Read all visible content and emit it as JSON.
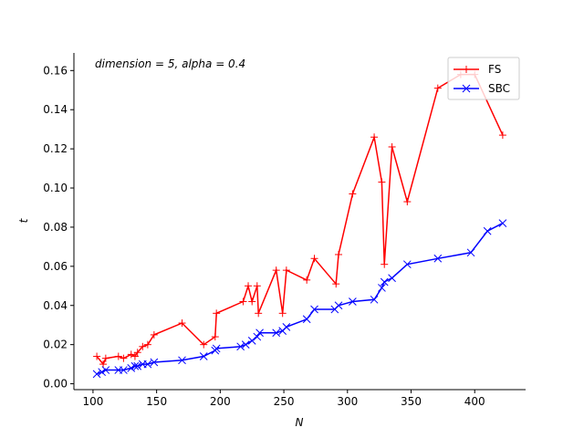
{
  "chart_data": {
    "type": "line",
    "annotation": "dimension = 5, alpha = 0.4",
    "xlabel": "N",
    "ylabel": "t",
    "xlim": [
      85,
      440
    ],
    "ylim": [
      -0.003,
      0.169
    ],
    "xticks": [
      100,
      150,
      200,
      250,
      300,
      350,
      400
    ],
    "yticks": [
      0.0,
      0.02,
      0.04,
      0.06,
      0.08,
      0.1,
      0.12,
      0.14,
      0.16
    ],
    "grid": false,
    "legend_position": "top-right",
    "series": [
      {
        "name": "FS",
        "color": "#ff0000",
        "marker": "plus",
        "points": [
          [
            103,
            0.014
          ],
          [
            108,
            0.01
          ],
          [
            110,
            0.013
          ],
          [
            120,
            0.014
          ],
          [
            124,
            0.013
          ],
          [
            130,
            0.015
          ],
          [
            133,
            0.014
          ],
          [
            135,
            0.016
          ],
          [
            139,
            0.019
          ],
          [
            143,
            0.02
          ],
          [
            148,
            0.025
          ],
          [
            170,
            0.031
          ],
          [
            187,
            0.02
          ],
          [
            196,
            0.024
          ],
          [
            197,
            0.036
          ],
          [
            218,
            0.042
          ],
          [
            222,
            0.05
          ],
          [
            225,
            0.042
          ],
          [
            229,
            0.05
          ],
          [
            230,
            0.036
          ],
          [
            244,
            0.058
          ],
          [
            249,
            0.036
          ],
          [
            252,
            0.058
          ],
          [
            268,
            0.053
          ],
          [
            274,
            0.064
          ],
          [
            291,
            0.051
          ],
          [
            293,
            0.066
          ],
          [
            304,
            0.097
          ],
          [
            321,
            0.126
          ],
          [
            327,
            0.103
          ],
          [
            329,
            0.061
          ],
          [
            335,
            0.121
          ],
          [
            347,
            0.093
          ],
          [
            371,
            0.151
          ],
          [
            389,
            0.158
          ],
          [
            400,
            0.158
          ],
          [
            422,
            0.127
          ]
        ]
      },
      {
        "name": "SBC",
        "color": "#0000ff",
        "marker": "x",
        "points": [
          [
            103,
            0.005
          ],
          [
            107,
            0.006
          ],
          [
            110,
            0.007
          ],
          [
            120,
            0.007
          ],
          [
            124,
            0.007
          ],
          [
            130,
            0.008
          ],
          [
            133,
            0.009
          ],
          [
            135,
            0.009
          ],
          [
            139,
            0.01
          ],
          [
            143,
            0.01
          ],
          [
            148,
            0.011
          ],
          [
            170,
            0.012
          ],
          [
            187,
            0.014
          ],
          [
            196,
            0.017
          ],
          [
            197,
            0.018
          ],
          [
            216,
            0.019
          ],
          [
            220,
            0.02
          ],
          [
            225,
            0.022
          ],
          [
            229,
            0.024
          ],
          [
            231,
            0.026
          ],
          [
            244,
            0.026
          ],
          [
            249,
            0.027
          ],
          [
            252,
            0.029
          ],
          [
            268,
            0.033
          ],
          [
            274,
            0.038
          ],
          [
            290,
            0.038
          ],
          [
            293,
            0.04
          ],
          [
            304,
            0.042
          ],
          [
            321,
            0.043
          ],
          [
            327,
            0.049
          ],
          [
            329,
            0.052
          ],
          [
            335,
            0.054
          ],
          [
            347,
            0.061
          ],
          [
            371,
            0.064
          ],
          [
            397,
            0.067
          ],
          [
            410,
            0.078
          ],
          [
            422,
            0.082
          ]
        ]
      }
    ]
  }
}
